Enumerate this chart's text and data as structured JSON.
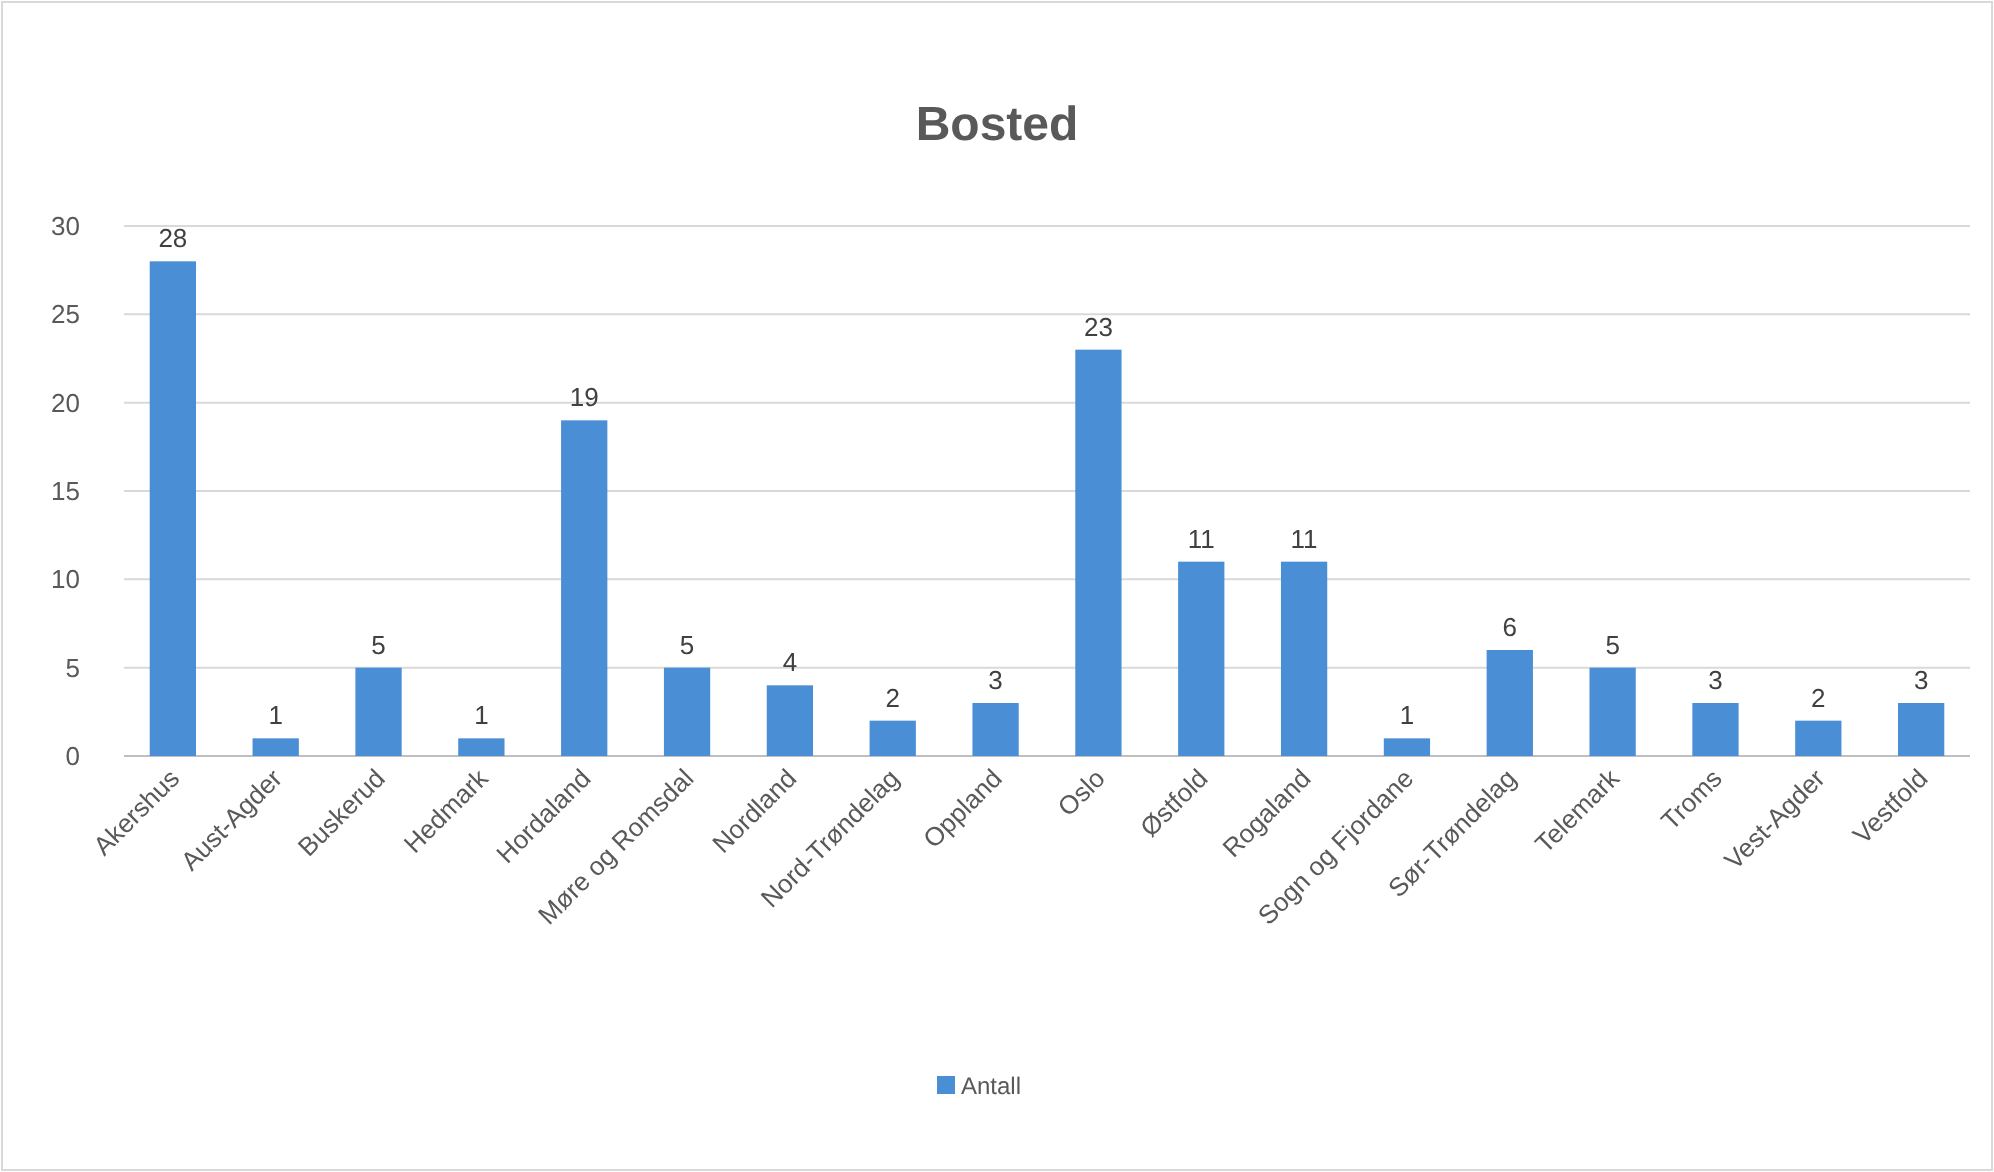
{
  "chart_data": {
    "type": "bar",
    "title": "Bosted",
    "categories": [
      "Akershus",
      "Aust-Agder",
      "Buskerud",
      "Hedmark",
      "Hordaland",
      "Møre og Romsdal",
      "Nordland",
      "Nord-Trøndelag",
      "Oppland",
      "Oslo",
      "Østfold",
      "Rogaland",
      "Sogn og Fjordane",
      "Sør-Trøndelag",
      "Telemark",
      "Troms",
      "Vest-Agder",
      "Vestfold"
    ],
    "series": [
      {
        "name": "Antall",
        "color": "#4a8fd6",
        "values": [
          28,
          1,
          5,
          1,
          19,
          5,
          4,
          2,
          3,
          23,
          11,
          11,
          1,
          6,
          5,
          3,
          2,
          3
        ]
      }
    ],
    "ylim": [
      0,
      30
    ],
    "yticks": [
      0,
      5,
      10,
      15,
      20,
      25,
      30
    ],
    "grid": "y",
    "data_labels": true,
    "legend": "bottom"
  }
}
